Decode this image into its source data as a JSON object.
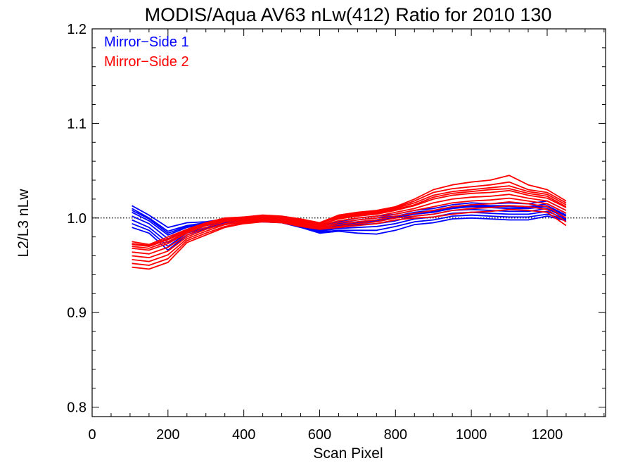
{
  "chart_data": {
    "type": "line",
    "title": "MODIS/Aqua AV63 nLw(412) Ratio for 2010 130",
    "xlabel": "Scan Pixel",
    "ylabel": "L2/L3 nLw",
    "xlim": [
      0,
      1354
    ],
    "ylim": [
      0.79,
      1.2
    ],
    "x_ticks": [
      "0",
      "200",
      "400",
      "600",
      "800",
      "1000",
      "1200"
    ],
    "y_ticks": [
      "0.8",
      "0.9",
      "1.0",
      "1.1",
      "1.2"
    ],
    "reference_line": 1.0,
    "legend_position": "top-left",
    "legend": [
      {
        "label": "Mirror−Side 1",
        "color": "#0000ff"
      },
      {
        "label": "Mirror−Side 2",
        "color": "#ff0000"
      }
    ],
    "x": [
      105,
      150,
      200,
      250,
      300,
      350,
      400,
      450,
      500,
      550,
      600,
      650,
      700,
      750,
      800,
      850,
      900,
      950,
      1000,
      1050,
      1100,
      1150,
      1200,
      1250
    ],
    "series": [
      {
        "group": "Mirror-Side 1",
        "color": "#0000ff",
        "values": [
          1.013,
          1.003,
          0.99,
          0.995,
          0.996,
          0.999,
          1.0,
          0.999,
          1.001,
          0.997,
          0.992,
          0.996,
          1.0,
          1.002,
          1.004,
          1.008,
          1.01,
          1.014,
          1.016,
          1.015,
          1.016,
          1.015,
          1.018,
          1.008
        ]
      },
      {
        "group": "Mirror-Side 1",
        "color": "#0000ff",
        "values": [
          1.01,
          1.0,
          0.986,
          0.992,
          0.995,
          0.998,
          1.0,
          0.999,
          1.0,
          0.995,
          0.989,
          0.994,
          0.998,
          1.0,
          1.002,
          1.006,
          1.008,
          1.012,
          1.014,
          1.013,
          1.013,
          1.012,
          1.015,
          1.005
        ]
      },
      {
        "group": "Mirror-Side 1",
        "color": "#0000ff",
        "values": [
          1.006,
          0.997,
          0.982,
          0.99,
          0.994,
          0.997,
          0.999,
          0.998,
          0.999,
          0.994,
          0.988,
          0.992,
          0.995,
          0.997,
          1.0,
          1.004,
          1.006,
          1.01,
          1.012,
          1.011,
          1.01,
          1.01,
          1.012,
          1.002
        ]
      },
      {
        "group": "Mirror-Side 1",
        "color": "#0000ff",
        "values": [
          1.002,
          0.994,
          0.978,
          0.988,
          0.993,
          0.996,
          0.998,
          0.997,
          0.998,
          0.993,
          0.987,
          0.99,
          0.993,
          0.994,
          0.997,
          1.002,
          1.004,
          1.008,
          1.009,
          1.008,
          1.007,
          1.007,
          1.01,
          1.0
        ]
      },
      {
        "group": "Mirror-Side 1",
        "color": "#0000ff",
        "values": [
          0.998,
          0.99,
          0.974,
          0.986,
          0.992,
          0.995,
          0.998,
          0.997,
          0.997,
          0.992,
          0.986,
          0.989,
          0.99,
          0.991,
          0.994,
          0.999,
          1.001,
          1.005,
          1.006,
          1.005,
          1.004,
          1.004,
          1.007,
          0.999
        ]
      },
      {
        "group": "Mirror-Side 1",
        "color": "#0000ff",
        "values": [
          0.994,
          0.987,
          0.97,
          0.984,
          0.99,
          0.994,
          0.997,
          0.996,
          0.996,
          0.991,
          0.985,
          0.987,
          0.987,
          0.987,
          0.991,
          0.996,
          0.998,
          1.002,
          1.003,
          1.002,
          1.001,
          1.001,
          1.004,
          0.998
        ]
      },
      {
        "group": "Mirror-Side 1",
        "color": "#0000ff",
        "values": [
          0.99,
          0.984,
          0.966,
          0.982,
          0.989,
          0.993,
          0.996,
          0.996,
          0.995,
          0.99,
          0.984,
          0.986,
          0.984,
          0.983,
          0.987,
          0.993,
          0.995,
          0.999,
          1.0,
          0.999,
          0.998,
          0.998,
          1.002,
          0.997
        ]
      },
      {
        "group": "Mirror-Side 1",
        "color": "#0000ff",
        "values": [
          1.008,
          0.999,
          0.984,
          0.991,
          0.995,
          0.998,
          0.999,
          0.998,
          1.0,
          0.995,
          0.99,
          0.993,
          0.996,
          0.998,
          1.001,
          1.005,
          1.007,
          1.011,
          1.013,
          1.012,
          1.012,
          1.011,
          1.013,
          1.003
        ]
      },
      {
        "group": "Mirror-Side 2",
        "color": "#ff0000",
        "values": [
          0.975,
          0.972,
          0.98,
          0.988,
          0.995,
          1.0,
          1.001,
          1.003,
          1.002,
          0.999,
          0.995,
          1.003,
          1.006,
          1.008,
          1.012,
          1.02,
          1.03,
          1.035,
          1.038,
          1.04,
          1.045,
          1.035,
          1.03,
          1.018
        ]
      },
      {
        "group": "Mirror-Side 2",
        "color": "#ff0000",
        "values": [
          0.972,
          0.97,
          0.977,
          0.986,
          0.994,
          0.999,
          1.0,
          1.002,
          1.001,
          0.997,
          0.994,
          1.001,
          1.004,
          1.006,
          1.01,
          1.016,
          1.024,
          1.028,
          1.03,
          1.032,
          1.034,
          1.028,
          1.025,
          1.014
        ]
      },
      {
        "group": "Mirror-Side 2",
        "color": "#ff0000",
        "values": [
          0.968,
          0.966,
          0.973,
          0.984,
          0.992,
          0.997,
          0.999,
          1.001,
          1.0,
          0.996,
          0.993,
          0.999,
          1.002,
          1.004,
          1.008,
          1.013,
          1.02,
          1.024,
          1.026,
          1.027,
          1.029,
          1.024,
          1.021,
          1.011
        ]
      },
      {
        "group": "Mirror-Side 2",
        "color": "#ff0000",
        "values": [
          0.964,
          0.962,
          0.969,
          0.982,
          0.99,
          0.996,
          0.998,
          1.0,
          0.999,
          0.995,
          0.992,
          0.997,
          1.0,
          1.002,
          1.006,
          1.01,
          1.016,
          1.02,
          1.022,
          1.023,
          1.025,
          1.021,
          1.018,
          1.008
        ]
      },
      {
        "group": "Mirror-Side 2",
        "color": "#ff0000",
        "values": [
          0.96,
          0.958,
          0.965,
          0.98,
          0.988,
          0.994,
          0.997,
          0.999,
          0.998,
          0.994,
          0.991,
          0.995,
          0.998,
          1.0,
          1.004,
          1.008,
          1.012,
          1.016,
          1.018,
          1.019,
          1.021,
          1.018,
          1.015,
          1.005
        ]
      },
      {
        "group": "Mirror-Side 2",
        "color": "#ff0000",
        "values": [
          0.956,
          0.954,
          0.961,
          0.978,
          0.986,
          0.993,
          0.996,
          0.998,
          0.997,
          0.993,
          0.99,
          0.993,
          0.996,
          0.998,
          1.002,
          1.005,
          1.008,
          1.012,
          1.014,
          1.015,
          1.017,
          1.015,
          1.012,
          1.0
        ]
      },
      {
        "group": "Mirror-Side 2",
        "color": "#ff0000",
        "values": [
          0.952,
          0.95,
          0.957,
          0.976,
          0.984,
          0.991,
          0.995,
          0.997,
          0.996,
          0.992,
          0.989,
          0.991,
          0.994,
          0.996,
          1.0,
          1.002,
          1.004,
          1.008,
          1.01,
          1.011,
          1.013,
          1.012,
          1.009,
          0.996
        ]
      },
      {
        "group": "Mirror-Side 2",
        "color": "#ff0000",
        "values": [
          0.948,
          0.946,
          0.953,
          0.974,
          0.982,
          0.99,
          0.994,
          0.996,
          0.995,
          0.991,
          0.988,
          0.99,
          0.992,
          0.994,
          0.998,
          1.0,
          1.001,
          1.004,
          1.006,
          1.007,
          1.009,
          1.008,
          1.006,
          0.992
        ]
      },
      {
        "group": "Mirror-Side 2",
        "color": "#ff0000",
        "values": [
          0.973,
          0.971,
          0.978,
          0.987,
          0.994,
          0.999,
          1.001,
          1.002,
          1.001,
          0.998,
          0.994,
          1.002,
          1.005,
          1.007,
          1.011,
          1.018,
          1.027,
          1.031,
          1.033,
          1.035,
          1.038,
          1.03,
          1.027,
          1.016
        ]
      },
      {
        "group": "Mirror-Side 2",
        "color": "#ff0000",
        "values": [
          0.97,
          0.968,
          0.975,
          0.985,
          0.993,
          0.998,
          1.0,
          1.001,
          1.0,
          0.996,
          0.992,
          1.0,
          1.003,
          1.005,
          1.009,
          1.014,
          1.022,
          1.026,
          1.028,
          1.03,
          1.031,
          1.026,
          1.023,
          1.012
        ]
      }
    ]
  }
}
